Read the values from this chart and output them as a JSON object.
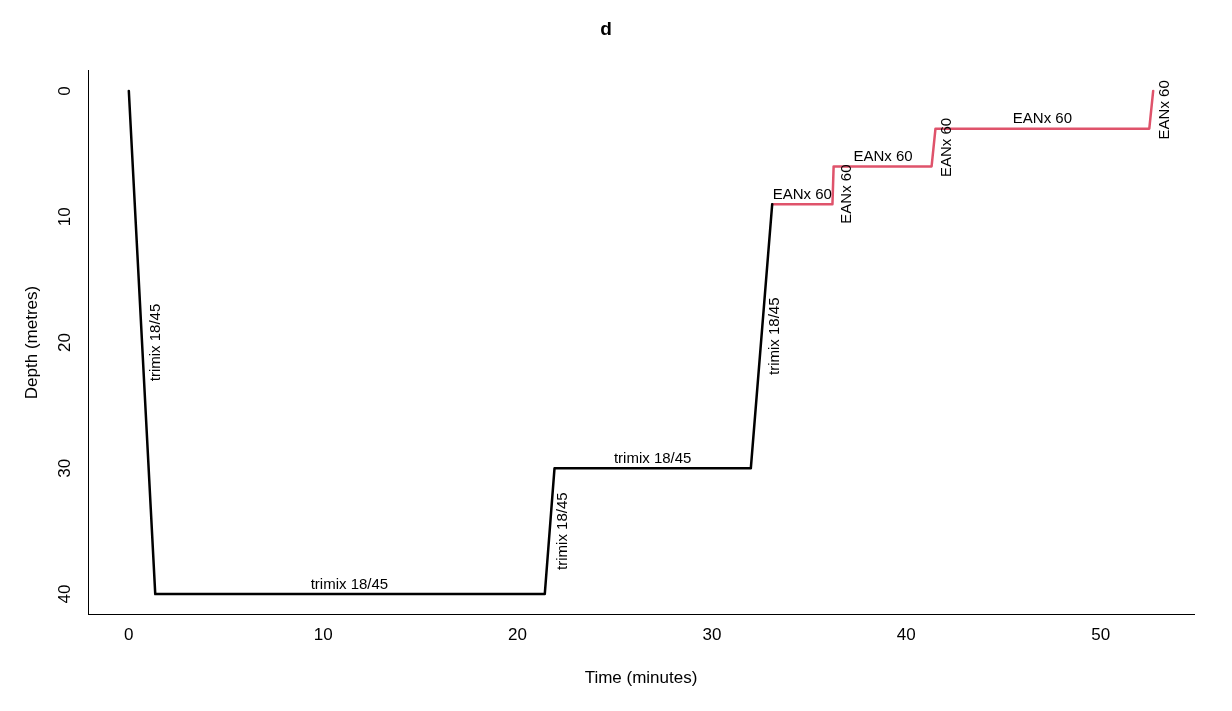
{
  "chart_data": {
    "type": "line",
    "title": "d",
    "xlabel": "Time (minutes)",
    "ylabel": "Depth (metres)",
    "series": [
      {
        "color": "#000000",
        "x": [
          0,
          1.36,
          21.4,
          21.9,
          32.0,
          33.1
        ],
        "values": [
          0,
          40,
          40,
          30,
          30,
          9
        ]
      },
      {
        "color": "#df536b",
        "x": [
          33.1,
          36.2,
          36.26,
          41.3,
          41.5,
          52.5,
          52.7
        ],
        "values": [
          9,
          9,
          6,
          6,
          3,
          3,
          0
        ]
      }
    ],
    "xlim": [
      -2.1,
      54.8
    ],
    "ylim": [
      41.6,
      -1.6
    ],
    "xticks": [
      0,
      10,
      20,
      30,
      40,
      50
    ],
    "yticks": [
      0,
      10,
      20,
      30,
      40
    ],
    "grid": false,
    "legend": false,
    "marker": "none",
    "line_style": "solid",
    "annotations": [
      {
        "text": "trimix 18/45",
        "x": 0.68,
        "y": 20
      },
      {
        "text": "trimix 18/45",
        "x": 11.35,
        "y": 40
      },
      {
        "text": "trimix 18/45",
        "x": 21.65,
        "y": 35
      },
      {
        "text": "trimix 18/45",
        "x": 26.95,
        "y": 30
      },
      {
        "text": "trimix 18/45",
        "x": 32.55,
        "y": 19.5
      },
      {
        "text": "EANx 60",
        "x": 34.65,
        "y": 9
      },
      {
        "text": "EANx 60",
        "x": 36.23,
        "y": 8.2
      },
      {
        "text": "EANx 60",
        "x": 38.8,
        "y": 6
      },
      {
        "text": "EANx 60",
        "x": 41.4,
        "y": 4.5
      },
      {
        "text": "EANx 60",
        "x": 47,
        "y": 3
      },
      {
        "text": "EANx 60",
        "x": 52.6,
        "y": 1.5
      }
    ]
  }
}
